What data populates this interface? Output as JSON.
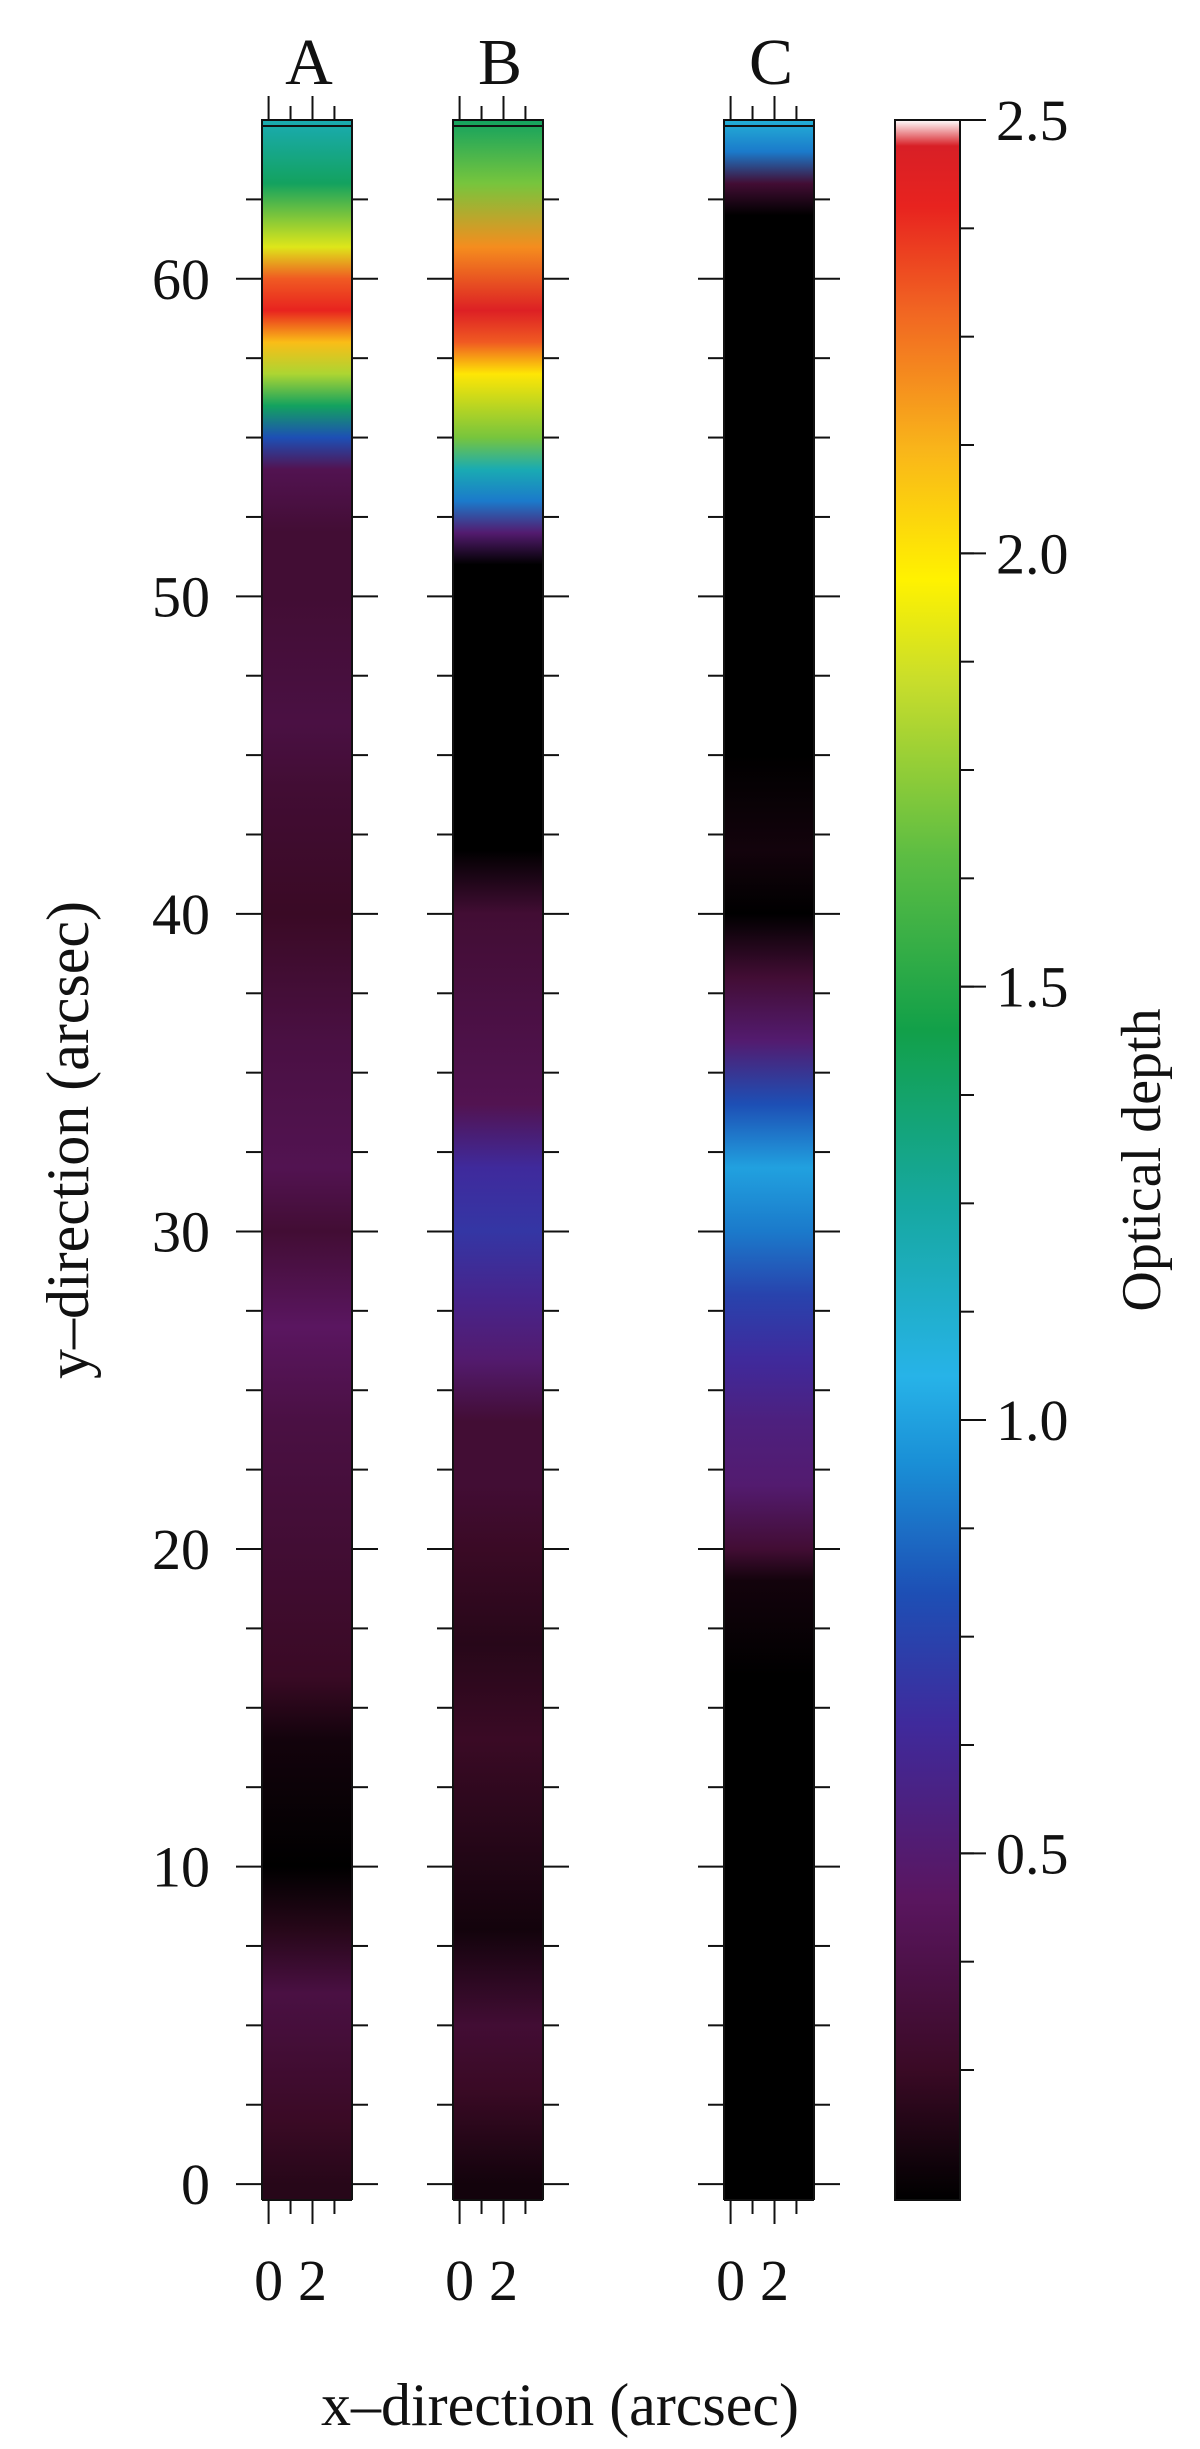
{
  "chart_data": {
    "type": "heatmap",
    "xlabel": "x–direction (arcsec)",
    "ylabel": "y–direction (arcsec)",
    "ylim": [
      -0.5,
      65
    ],
    "xlim": [
      -0.3,
      3.8
    ],
    "y_ticks": [
      0,
      10,
      20,
      30,
      40,
      50,
      60
    ],
    "x_ticks": [
      0,
      2
    ],
    "panels": [
      {
        "label": "A",
        "profile": [
          [
            65,
            1.2
          ],
          [
            63,
            1.4
          ],
          [
            61,
            1.9
          ],
          [
            60,
            2.3
          ],
          [
            59,
            2.4
          ],
          [
            58,
            2.1
          ],
          [
            57,
            1.8
          ],
          [
            56,
            1.4
          ],
          [
            55,
            0.8
          ],
          [
            54,
            0.4
          ],
          [
            52,
            0.3
          ],
          [
            50,
            0.3
          ],
          [
            46,
            0.35
          ],
          [
            44,
            0.3
          ],
          [
            40,
            0.25
          ],
          [
            36,
            0.35
          ],
          [
            32,
            0.4
          ],
          [
            30,
            0.3
          ],
          [
            27,
            0.45
          ],
          [
            24,
            0.35
          ],
          [
            20,
            0.3
          ],
          [
            16,
            0.25
          ],
          [
            14,
            0.15
          ],
          [
            10,
            0.1
          ],
          [
            8,
            0.2
          ],
          [
            6,
            0.35
          ],
          [
            4,
            0.3
          ],
          [
            2,
            0.25
          ],
          [
            0,
            0.2
          ],
          [
            -0.5,
            0.2
          ]
        ]
      },
      {
        "label": "B",
        "profile": [
          [
            65,
            1.4
          ],
          [
            63,
            1.7
          ],
          [
            61,
            2.2
          ],
          [
            59,
            2.45
          ],
          [
            58,
            2.3
          ],
          [
            57,
            2.0
          ],
          [
            55,
            1.7
          ],
          [
            54,
            1.2
          ],
          [
            53,
            0.9
          ],
          [
            52,
            0.5
          ],
          [
            51,
            0.1
          ],
          [
            48,
            0.05
          ],
          [
            44,
            0.05
          ],
          [
            42,
            0.1
          ],
          [
            40,
            0.3
          ],
          [
            37,
            0.35
          ],
          [
            34,
            0.4
          ],
          [
            32,
            0.65
          ],
          [
            30,
            0.7
          ],
          [
            28,
            0.6
          ],
          [
            26,
            0.5
          ],
          [
            24,
            0.3
          ],
          [
            22,
            0.3
          ],
          [
            20,
            0.25
          ],
          [
            17,
            0.2
          ],
          [
            14,
            0.25
          ],
          [
            11,
            0.2
          ],
          [
            8,
            0.15
          ],
          [
            5,
            0.3
          ],
          [
            3,
            0.25
          ],
          [
            0,
            0.15
          ],
          [
            -0.5,
            0.15
          ]
        ]
      },
      {
        "label": "C",
        "profile": [
          [
            65,
            1.1
          ],
          [
            64,
            0.9
          ],
          [
            63,
            0.3
          ],
          [
            62,
            0.05
          ],
          [
            55,
            0.05
          ],
          [
            48,
            0.05
          ],
          [
            45,
            0.1
          ],
          [
            42,
            0.15
          ],
          [
            40,
            0.1
          ],
          [
            38,
            0.3
          ],
          [
            36,
            0.5
          ],
          [
            34,
            0.8
          ],
          [
            32,
            1.0
          ],
          [
            30,
            0.9
          ],
          [
            28,
            0.75
          ],
          [
            26,
            0.65
          ],
          [
            24,
            0.55
          ],
          [
            22,
            0.5
          ],
          [
            20,
            0.3
          ],
          [
            19,
            0.15
          ],
          [
            16,
            0.05
          ],
          [
            10,
            0.05
          ],
          [
            5,
            0.05
          ],
          [
            0,
            0.05
          ],
          [
            -0.5,
            0.05
          ]
        ]
      }
    ],
    "colorbar": {
      "label": "Optical depth",
      "range": [
        0.1,
        2.5
      ],
      "ticks": [
        "0.5",
        "1.0",
        "1.5",
        "2.0",
        "2.5"
      ],
      "tick_values": [
        0.5,
        1.0,
        1.5,
        2.0,
        2.5
      ],
      "colors": [
        [
          0.1,
          "#000000"
        ],
        [
          0.25,
          "#3a0a25"
        ],
        [
          0.45,
          "#5a1660"
        ],
        [
          0.65,
          "#3f2a9c"
        ],
        [
          0.8,
          "#1d4fb5"
        ],
        [
          0.95,
          "#1a8fd6"
        ],
        [
          1.05,
          "#27b3e8"
        ],
        [
          1.25,
          "#16a8a0"
        ],
        [
          1.45,
          "#12a049"
        ],
        [
          1.65,
          "#5cbd43"
        ],
        [
          1.85,
          "#c7dd2c"
        ],
        [
          1.97,
          "#fff200"
        ],
        [
          2.12,
          "#f9b51a"
        ],
        [
          2.28,
          "#f16522"
        ],
        [
          2.4,
          "#e8231f"
        ],
        [
          2.47,
          "#d81f26"
        ],
        [
          2.5,
          "#ffffff"
        ]
      ]
    }
  }
}
